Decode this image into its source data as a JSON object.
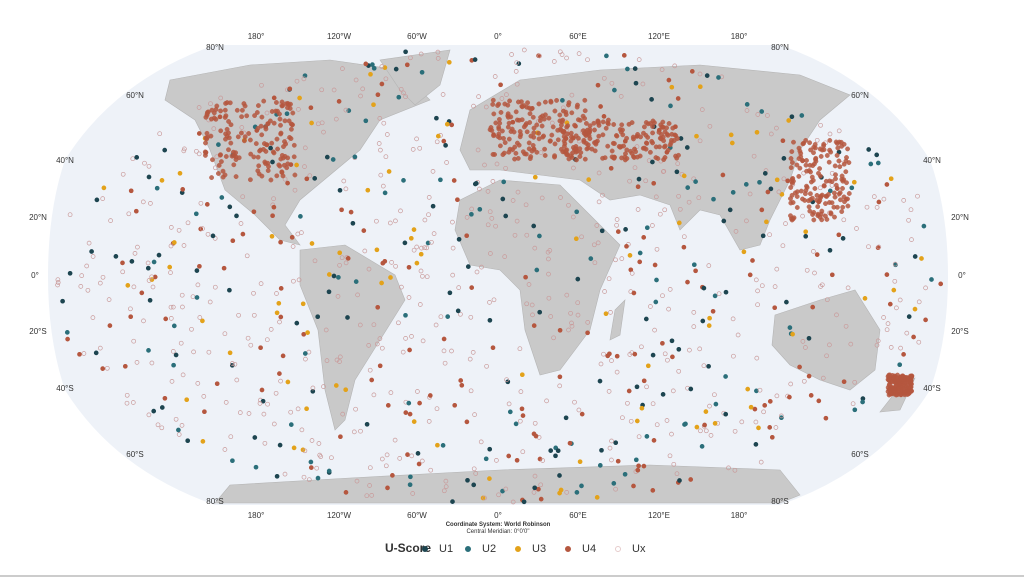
{
  "map": {
    "lon_labels_top": [
      "180°",
      "120°W",
      "60°W",
      "0°",
      "60°E",
      "120°E",
      "180°"
    ],
    "lon_labels_bottom": [
      "180°",
      "120°W",
      "60°W",
      "0°",
      "60°E",
      "120°E",
      "180°"
    ],
    "lat_labels_left": [
      "80°N",
      "60°N",
      "40°N",
      "20°N",
      "0°",
      "20°S",
      "40°S",
      "60°S",
      "80°S"
    ],
    "lat_labels_right": [
      "80°N",
      "60°N",
      "40°N",
      "20°N",
      "0°",
      "20°S",
      "40°S",
      "60°S",
      "80°S"
    ],
    "coordinate_system": "Coordinate System: World Robinson",
    "central_meridian": "Central Meridian: 0°0'0\""
  },
  "legend": {
    "title": "U-Score",
    "items": [
      {
        "label": "U1",
        "color": "#1d4550"
      },
      {
        "label": "U2",
        "color": "#2b6f7a"
      },
      {
        "label": "U3",
        "color": "#e3a21a"
      },
      {
        "label": "U4",
        "color": "#b5573f"
      },
      {
        "label": "Ux",
        "color": "#e6cccc"
      }
    ]
  }
}
